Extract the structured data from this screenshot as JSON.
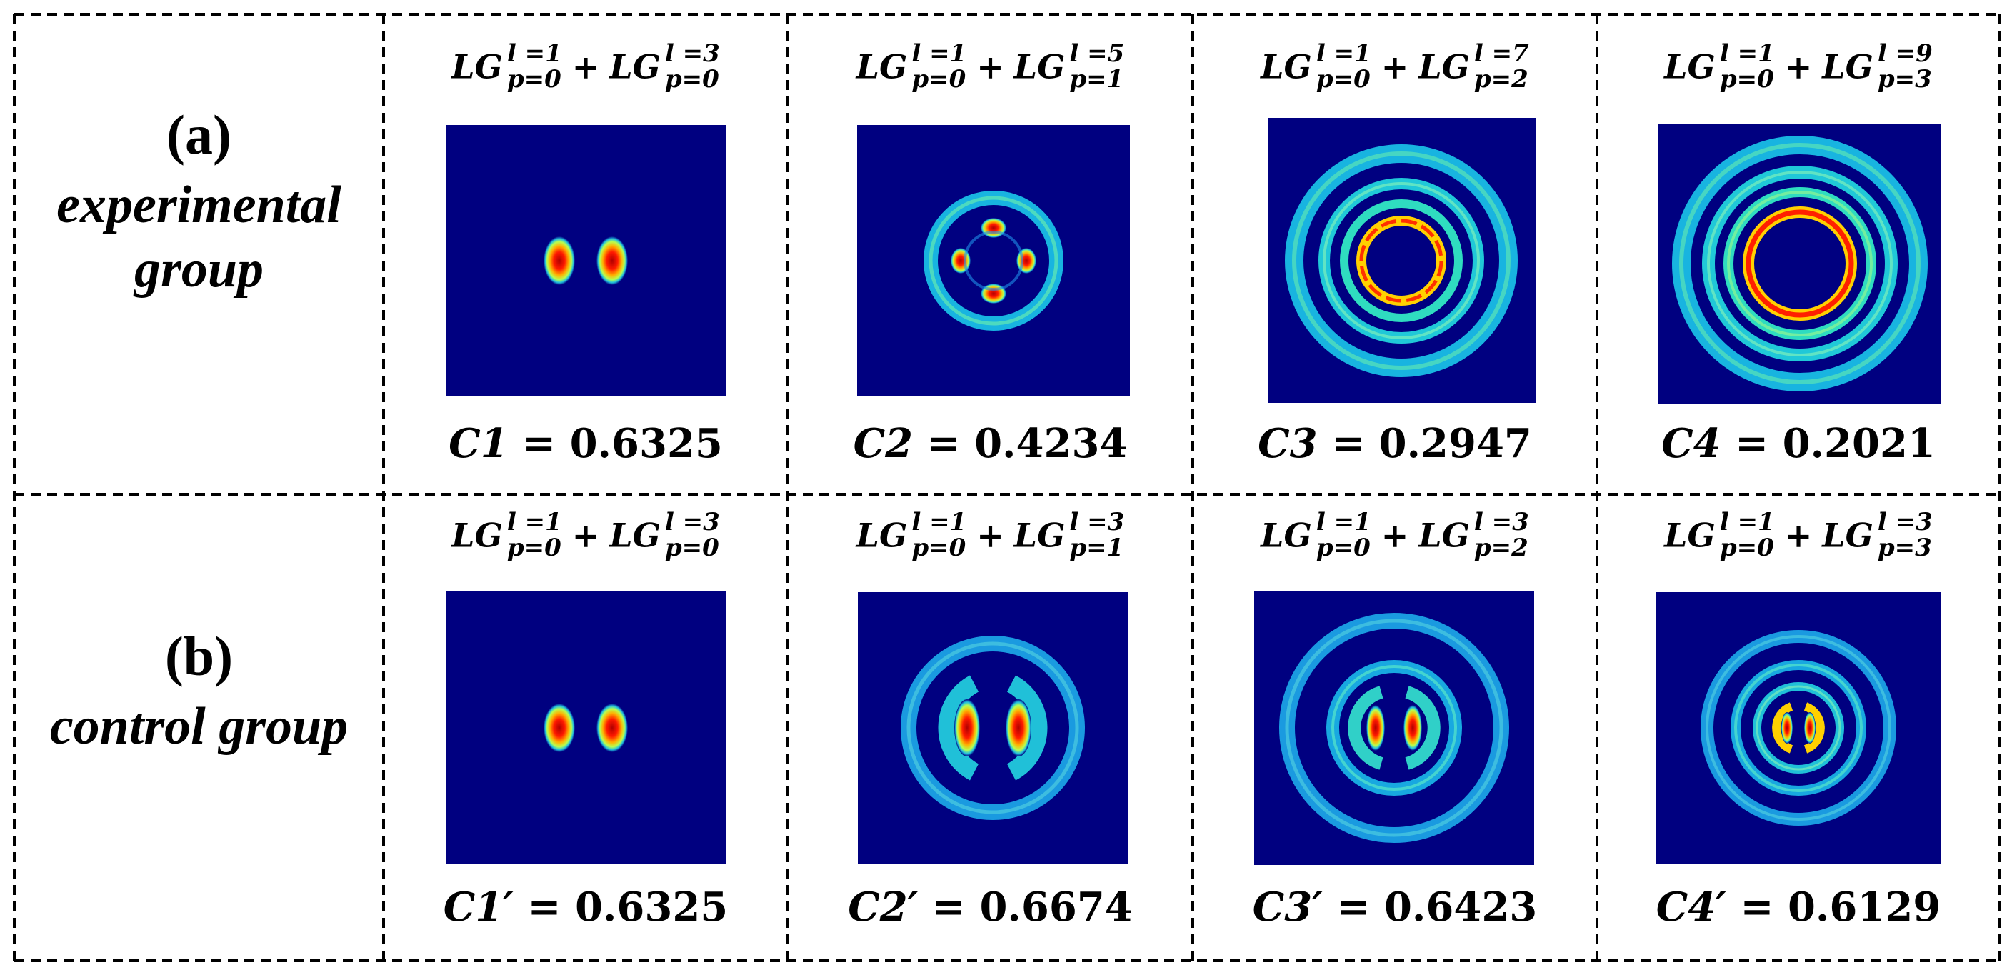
{
  "rows": [
    {
      "tag": "(a)",
      "name_lines": [
        "experimental",
        "group"
      ],
      "cells": [
        {
          "mode1": {
            "base": "LG",
            "l": "l =1",
            "p": "p=0"
          },
          "plus": "+",
          "mode2": {
            "base": "LG",
            "l": "l =3",
            "p": "p=0"
          },
          "coef": {
            "symbol": "C1",
            "eq": " = ",
            "value": "0.6325"
          }
        },
        {
          "mode1": {
            "base": "LG",
            "l": "l =1",
            "p": "p=0"
          },
          "plus": "+",
          "mode2": {
            "base": "LG",
            "l": "l =5",
            "p": "p=1"
          },
          "coef": {
            "symbol": "C2",
            "eq": " = ",
            "value": "0.4234"
          }
        },
        {
          "mode1": {
            "base": "LG",
            "l": "l =1",
            "p": "p=0"
          },
          "plus": "+",
          "mode2": {
            "base": "LG",
            "l": "l =7",
            "p": "p=2"
          },
          "coef": {
            "symbol": "C3",
            "eq": " = ",
            "value": "0.2947"
          }
        },
        {
          "mode1": {
            "base": "LG",
            "l": "l =1",
            "p": "p=0"
          },
          "plus": "+",
          "mode2": {
            "base": "LG",
            "l": "l =9",
            "p": "p=3"
          },
          "coef": {
            "symbol": "C4",
            "eq": " = ",
            "value": "0.2021"
          }
        }
      ]
    },
    {
      "tag": "(b)",
      "name_lines": [
        "control group"
      ],
      "cells": [
        {
          "mode1": {
            "base": "LG",
            "l": "l =1",
            "p": "p=0"
          },
          "plus": "+",
          "mode2": {
            "base": "LG",
            "l": "l =3",
            "p": "p=0"
          },
          "coef": {
            "symbol": "C1′",
            "eq": " = ",
            "value": "0.6325"
          }
        },
        {
          "mode1": {
            "base": "LG",
            "l": "l =1",
            "p": "p=0"
          },
          "plus": "+",
          "mode2": {
            "base": "LG",
            "l": "l =3",
            "p": "p=1"
          },
          "coef": {
            "symbol": "C2′",
            "eq": " = ",
            "value": "0.6674"
          }
        },
        {
          "mode1": {
            "base": "LG",
            "l": "l =1",
            "p": "p=0"
          },
          "plus": "+",
          "mode2": {
            "base": "LG",
            "l": "l =3",
            "p": "p=2"
          },
          "coef": {
            "symbol": "C3′",
            "eq": " = ",
            "value": "0.6423"
          }
        },
        {
          "mode1": {
            "base": "LG",
            "l": "l =1",
            "p": "p=0"
          },
          "plus": "+",
          "mode2": {
            "base": "LG",
            "l": "l =3",
            "p": "p=3"
          },
          "coef": {
            "symbol": "C4′",
            "eq": " = ",
            "value": "0.6129"
          }
        }
      ]
    }
  ],
  "colors": {
    "background": "#000080",
    "border": "#000000"
  }
}
